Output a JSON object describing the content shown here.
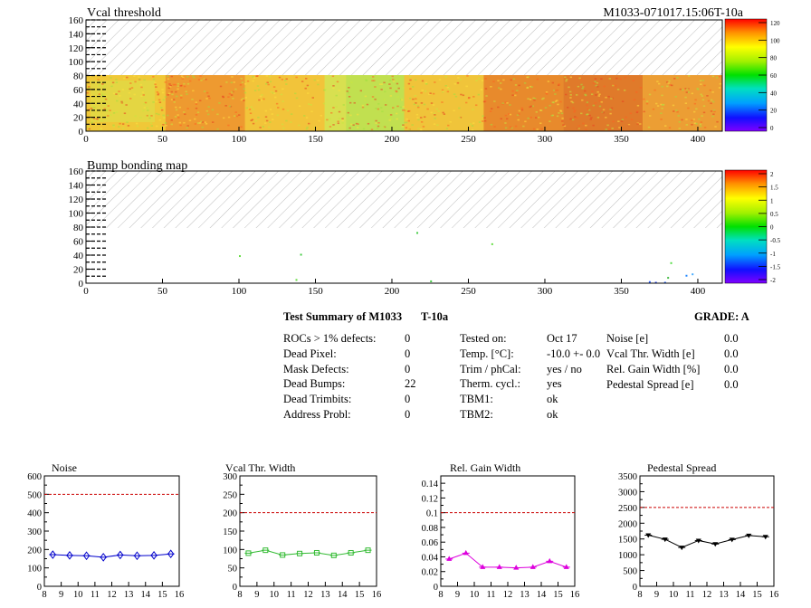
{
  "module_id": "M1033-071017.15:06T-10a",
  "maps": [
    {
      "title": "Vcal threshold",
      "y_ticks": [
        0,
        20,
        40,
        60,
        80,
        100,
        120,
        140,
        160
      ],
      "x_ticks": [
        0,
        50,
        100,
        150,
        200,
        250,
        300,
        350,
        400
      ],
      "colorbar_ticks": [
        0,
        20,
        40,
        60,
        80,
        100,
        120
      ]
    },
    {
      "title": "Bump bonding map",
      "y_ticks": [
        0,
        20,
        40,
        60,
        80,
        100,
        120,
        140,
        160
      ],
      "x_ticks": [
        0,
        50,
        100,
        150,
        200,
        250,
        300,
        350,
        400
      ],
      "colorbar_ticks": [
        "-2",
        "-1.5",
        "-1",
        "-0.5",
        "0",
        "0.5",
        "1",
        "1.5",
        "2"
      ]
    }
  ],
  "summary": {
    "title": "Test Summary of M1033",
    "module_tag": "T-10a",
    "grade": "GRADE:  A",
    "defects": [
      {
        "label": "ROCs > 1% defects:",
        "value": "0"
      },
      {
        "label": "Dead Pixel:",
        "value": "0"
      },
      {
        "label": "Mask Defects:",
        "value": "0"
      },
      {
        "label": "Dead Bumps:",
        "value": "22"
      },
      {
        "label": "Dead Trimbits:",
        "value": "0"
      },
      {
        "label": "Address Probl:",
        "value": "0"
      }
    ],
    "conditions": [
      {
        "label": "Tested on:",
        "value": "Oct 17"
      },
      {
        "label": "Temp. [°C]:",
        "value": "-10.0 +- 0.0"
      },
      {
        "label": "Trim / phCal:",
        "value": "yes / no"
      },
      {
        "label": "Therm. cycl.:",
        "value": "yes"
      },
      {
        "label": "TBM1:",
        "value": "ok"
      },
      {
        "label": "TBM2:",
        "value": "ok"
      }
    ],
    "widths": [
      {
        "label": "Noise [e]",
        "value": "0.0"
      },
      {
        "label": "Vcal Thr. Width [e]",
        "value": "0.0"
      },
      {
        "label": "Rel. Gain Width [%]",
        "value": "0.0"
      },
      {
        "label": "Pedestal Spread [e]",
        "value": "0.0"
      }
    ]
  },
  "chart_data": [
    {
      "type": "line",
      "title": "Noise",
      "x": [
        8.5,
        9.5,
        10.5,
        11.5,
        12.5,
        13.5,
        14.5,
        15.5
      ],
      "values": [
        172,
        168,
        166,
        158,
        170,
        166,
        168,
        176
      ],
      "xlim": [
        8,
        16
      ],
      "ylim": [
        0,
        600
      ],
      "x_ticks": [
        8,
        9,
        10,
        11,
        12,
        13,
        14,
        15,
        16
      ],
      "y_ticks": [
        0,
        100,
        200,
        300,
        400,
        500,
        600
      ],
      "threshold": 500,
      "color": "#0000cc",
      "marker": "diamond"
    },
    {
      "type": "line",
      "title": "Vcal Thr. Width",
      "x": [
        8.5,
        9.5,
        10.5,
        11.5,
        12.5,
        13.5,
        14.5,
        15.5
      ],
      "values": [
        90,
        98,
        85,
        89,
        91,
        84,
        91,
        98
      ],
      "xlim": [
        8,
        16
      ],
      "ylim": [
        0,
        300
      ],
      "x_ticks": [
        8,
        9,
        10,
        11,
        12,
        13,
        14,
        15,
        16
      ],
      "y_ticks": [
        0,
        50,
        100,
        150,
        200,
        250,
        300
      ],
      "threshold": 200,
      "color": "#33bb33",
      "marker": "square"
    },
    {
      "type": "line",
      "title": "Rel. Gain Width",
      "x": [
        8.5,
        9.5,
        10.5,
        11.5,
        12.5,
        13.5,
        14.5,
        15.5
      ],
      "values": [
        0.037,
        0.045,
        0.026,
        0.026,
        0.025,
        0.026,
        0.034,
        0.026
      ],
      "xlim": [
        8,
        16
      ],
      "ylim": [
        0,
        0.15
      ],
      "x_ticks": [
        8,
        9,
        10,
        11,
        12,
        13,
        14,
        15,
        16
      ],
      "y_ticks": [
        0,
        0.02,
        0.04,
        0.06,
        0.08,
        0.1,
        0.12,
        0.14
      ],
      "y_labels": [
        "0",
        "0.02",
        "0.04",
        "0.06",
        "0.08",
        "0.1",
        "0.12",
        "0.14"
      ],
      "threshold": 0.1,
      "color": "#dd00dd",
      "marker": "triangle"
    },
    {
      "type": "line",
      "title": "Pedestal Spread",
      "x": [
        8.5,
        9.5,
        10.5,
        11.5,
        12.5,
        13.5,
        14.5,
        15.5
      ],
      "values": [
        1620,
        1490,
        1230,
        1450,
        1340,
        1480,
        1610,
        1570
      ],
      "xlim": [
        8,
        16
      ],
      "ylim": [
        0,
        3500
      ],
      "x_ticks": [
        8,
        9,
        10,
        11,
        12,
        13,
        14,
        15,
        16
      ],
      "y_ticks": [
        0,
        500,
        1000,
        1500,
        2000,
        2500,
        3000,
        3500
      ],
      "threshold": 2500,
      "color": "#000000",
      "marker": "triangle-down"
    }
  ]
}
